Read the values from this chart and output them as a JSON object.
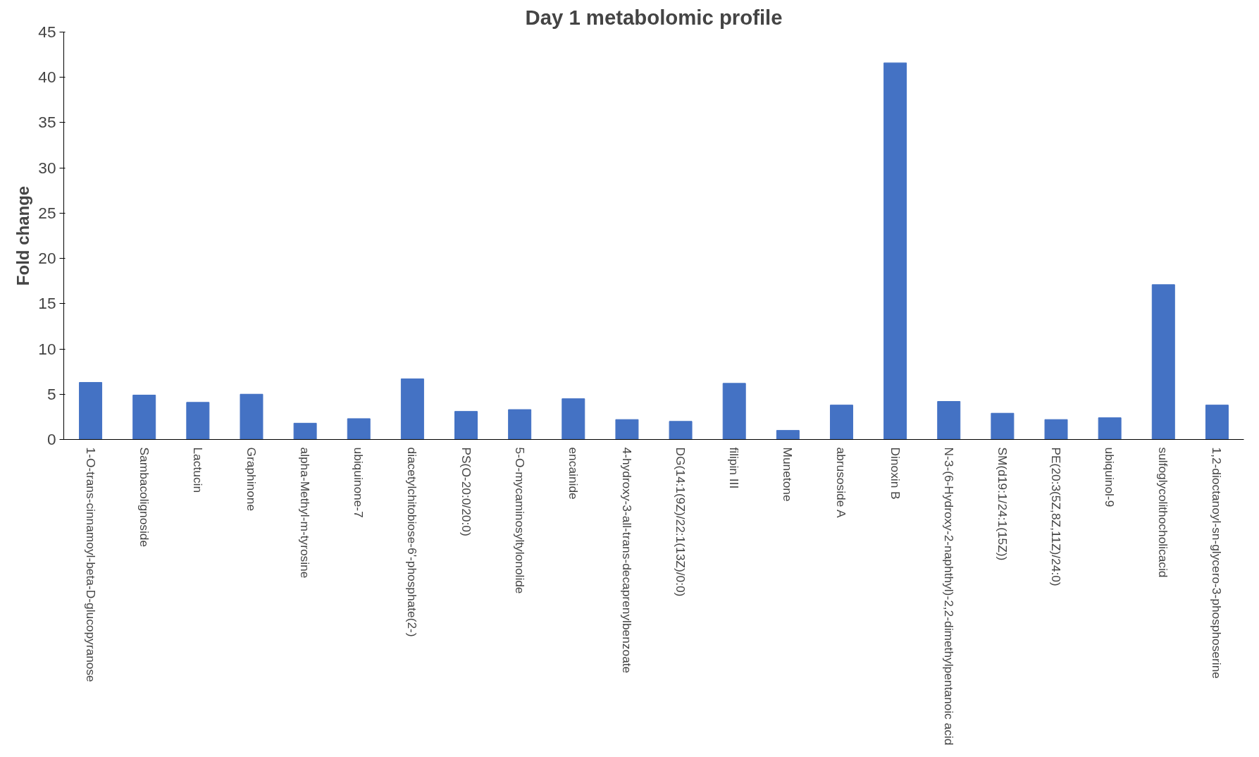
{
  "chart_data": {
    "type": "bar",
    "title": "Day 1 metabolomic profile",
    "ylabel": "Fold change",
    "categories": [
      "1-O-trans-cinnamoyl-beta-D-glucopyranose",
      "Sambacolignoside",
      "Lactucin",
      "Graphinone",
      "alpha-Methyl-m-tyrosine",
      "ubiquinone-7",
      "diacetylchitobiose-6'-phosphate(2-)",
      "PS(O-20:0/20:0)",
      "5-O-mycaminosyltylonolide",
      "encainide",
      "4-hydroxy-3-all-trans-decaprenylbenzoate",
      "DG(14:1(9Z)/22:1(13Z)/0:0)",
      "filipin III",
      "Munetone",
      "abrusoside A",
      "Dinoxin B",
      "N-3-(6-Hydroxy-2-naphthyl)-2,2-dimethylpentanoic acid",
      "SM(d19:1/24:1(15Z))",
      "PE(20:3(5Z,8Z,11Z)/24:0)",
      "ubiquinol-9",
      "sulfoglycolithocholicacid",
      "1,2-dioctanoyl-sn-glycero-3-phosphoserine"
    ],
    "values": [
      6.3,
      4.9,
      4.1,
      5.0,
      1.8,
      2.3,
      6.7,
      3.1,
      3.3,
      4.5,
      2.2,
      2.0,
      6.2,
      1.0,
      3.8,
      41.6,
      4.2,
      2.9,
      2.2,
      2.4,
      17.1,
      3.8
    ],
    "color": "#4472c4",
    "ylim": [
      0,
      45
    ],
    "yticks": [
      0,
      5,
      10,
      15,
      20,
      25,
      30,
      35,
      40,
      45
    ],
    "grid": false
  }
}
